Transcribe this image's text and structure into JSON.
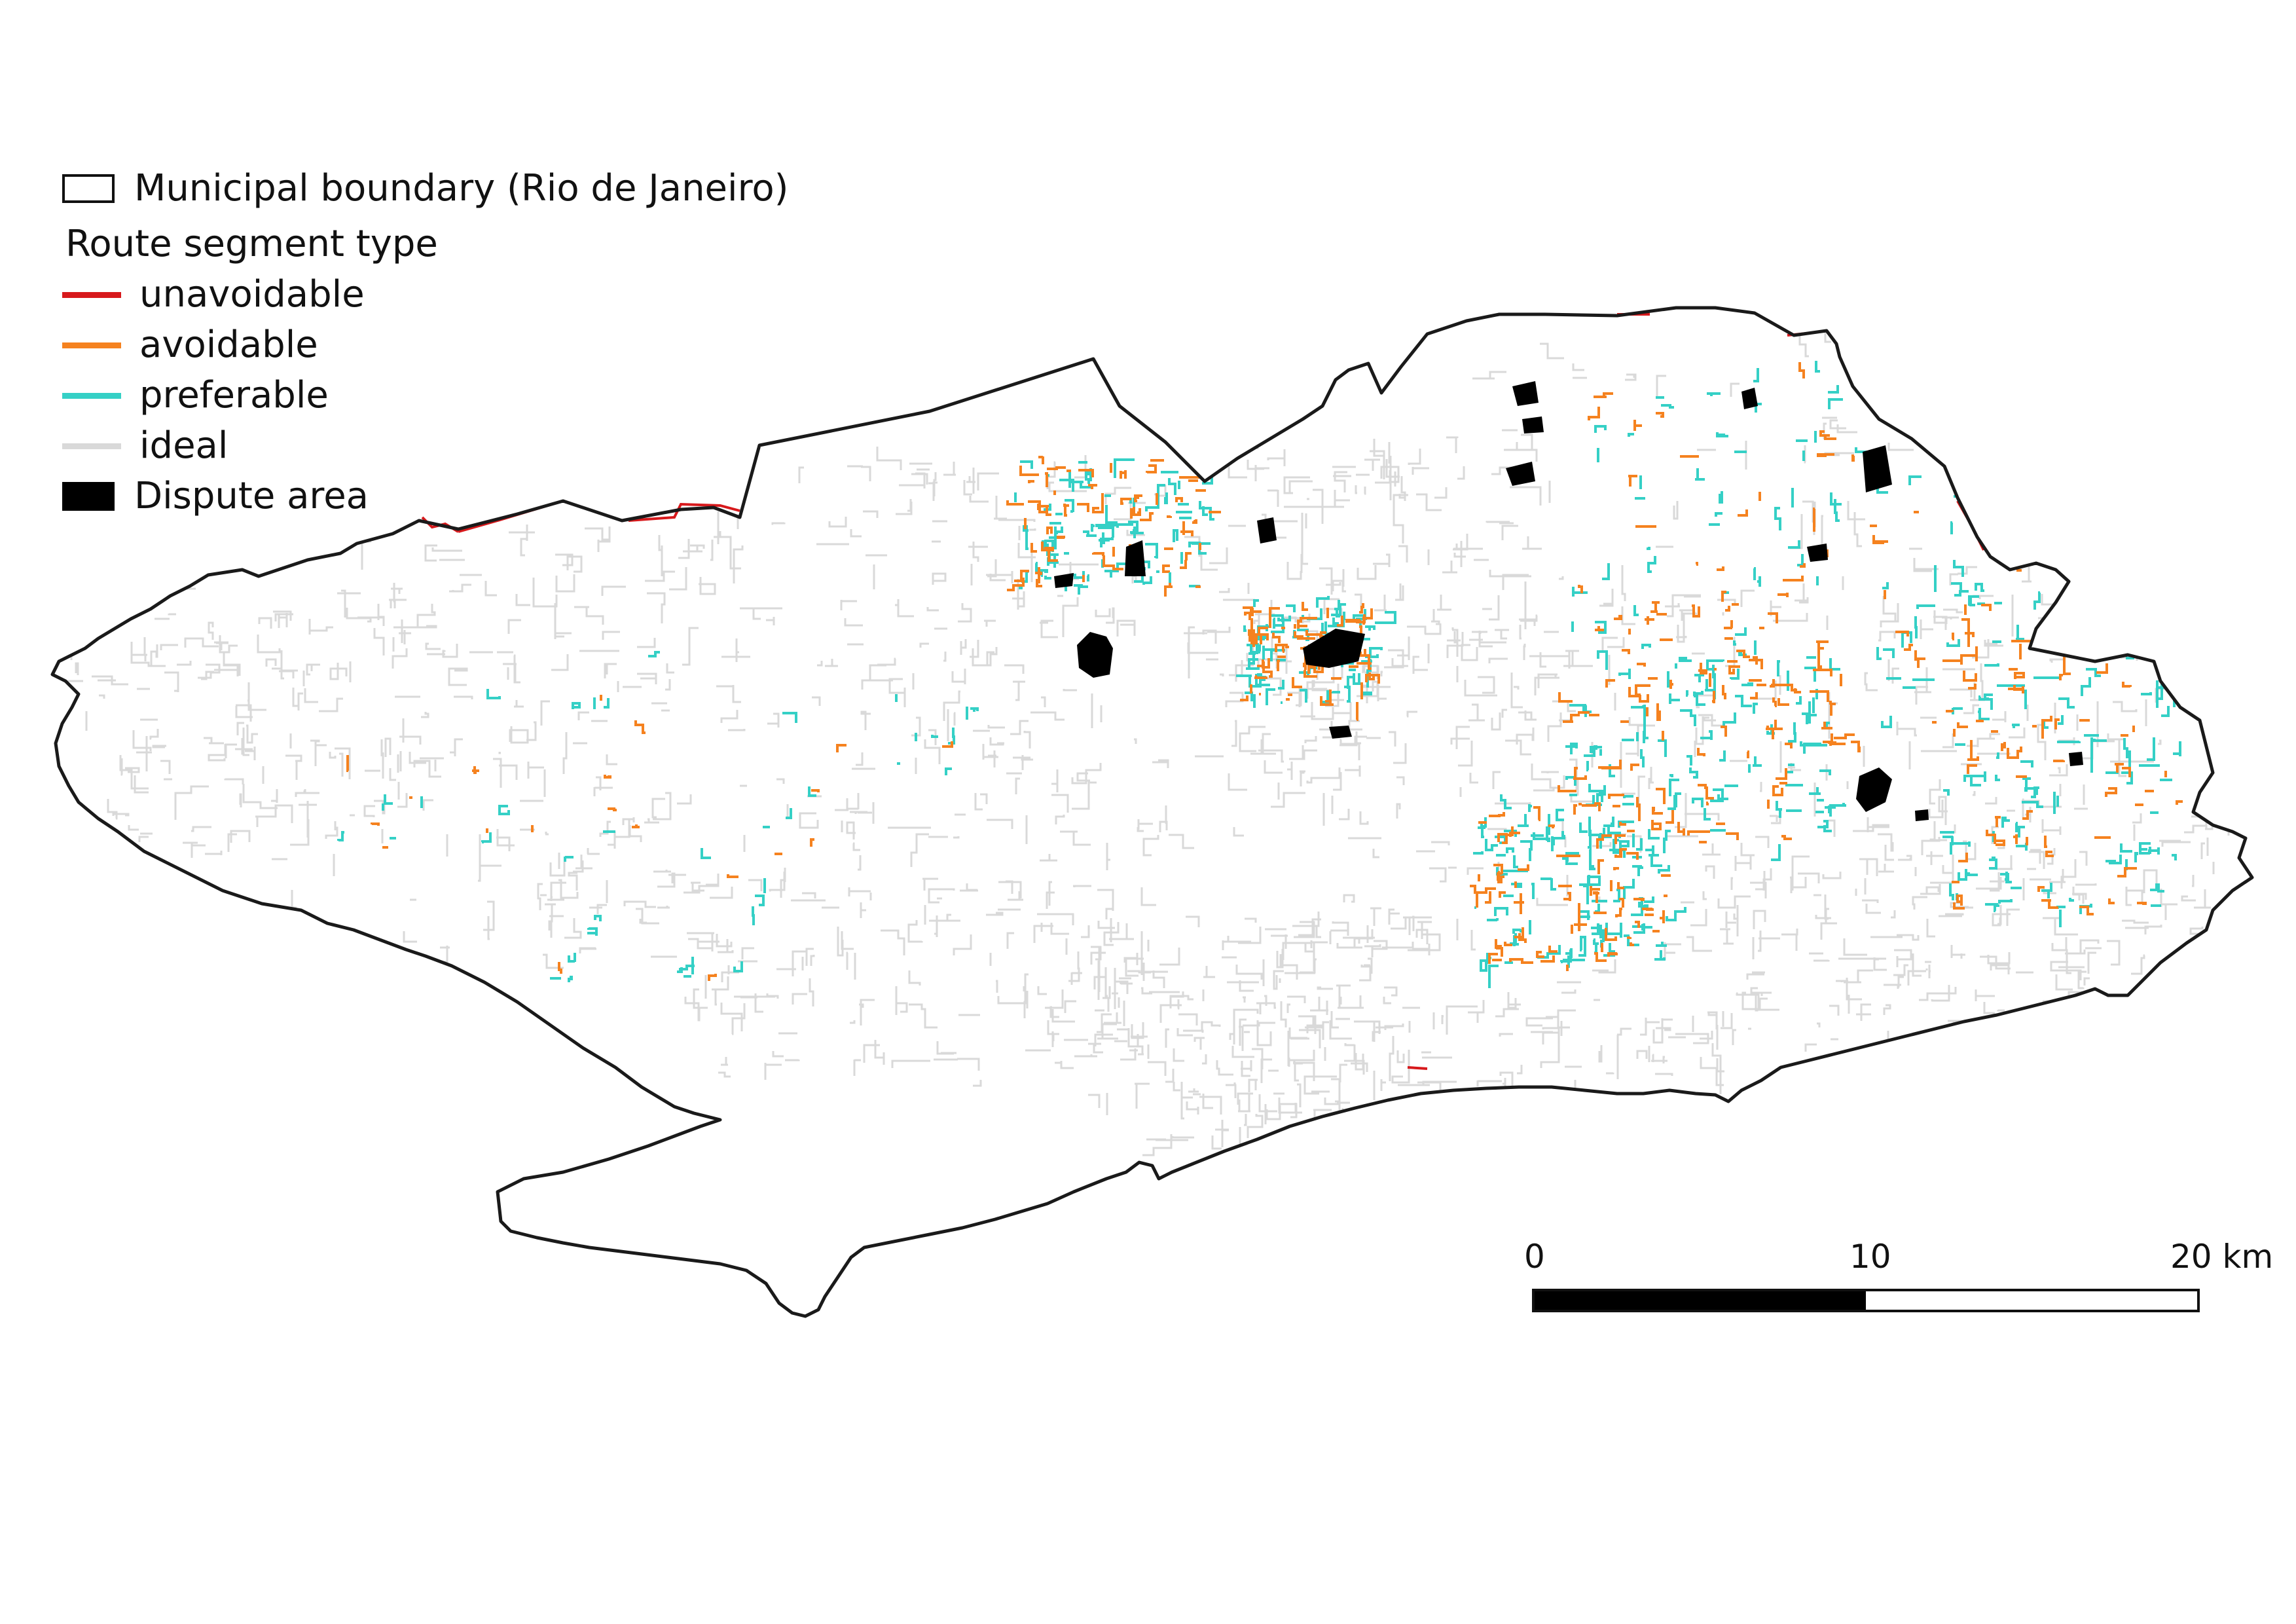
{
  "legend": {
    "boundary_label": "Municipal boundary (Rio de Janeiro)",
    "section_title": "Route segment type",
    "items": [
      {
        "label": "unavoidable",
        "color": "#d7191c"
      },
      {
        "label": "avoidable",
        "color": "#f5821f"
      },
      {
        "label": "preferable",
        "color": "#35d0c6"
      },
      {
        "label": "ideal",
        "color": "#d9d9d9"
      }
    ],
    "dispute_label": "Dispute area",
    "dispute_color": "#000000"
  },
  "scalebar": {
    "labels": [
      "0",
      "10",
      "20 km"
    ]
  },
  "colors": {
    "boundary": "#1a1a1a",
    "background": "#ffffff"
  }
}
